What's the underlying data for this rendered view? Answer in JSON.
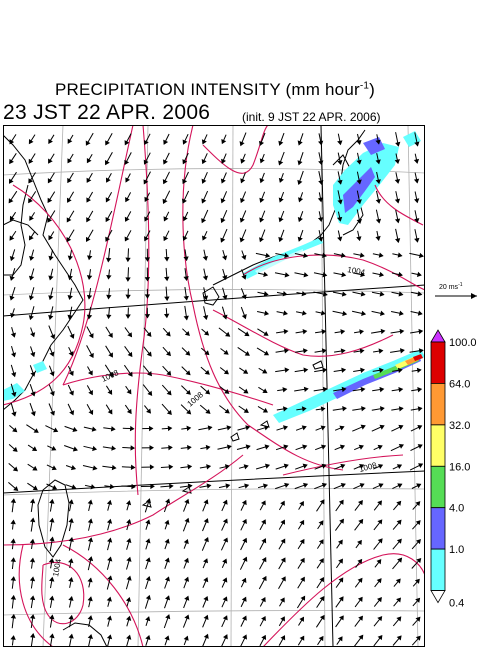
{
  "header": {
    "title": "PRECIPITATION INTENSITY (mm hour",
    "title_sup": "-1",
    "title_close": ")",
    "valid_time": "23 JST 22 APR. 2006",
    "init_time": "(init. 9 JST 22 APR. 2006)"
  },
  "wind_reference": {
    "label": "20 ms",
    "label_sup": "-1"
  },
  "contour_labels": [
    "1008",
    "1008",
    "1008",
    "1004",
    "1004",
    "1008",
    "1008",
    "1012"
  ],
  "colorbar": {
    "levels": [
      "0.4",
      "1.0",
      "4.0",
      "16.0",
      "32.0",
      "64.0",
      "100.0"
    ],
    "colors": [
      "#ffffff",
      "#66ffff",
      "#6666ff",
      "#55dd55",
      "#ffff66",
      "#ff9933",
      "#dd0000",
      "#cc33ff"
    ]
  },
  "colors": {
    "isobar": "#d4145a",
    "coast": "#000000",
    "grid": "#999999",
    "rain_light": "#66ffff",
    "rain_mid": "#6666ff",
    "rain_green": "#55dd55",
    "rain_yellow": "#ffff66",
    "rain_orange": "#ff9933",
    "rain_red": "#dd0000"
  }
}
